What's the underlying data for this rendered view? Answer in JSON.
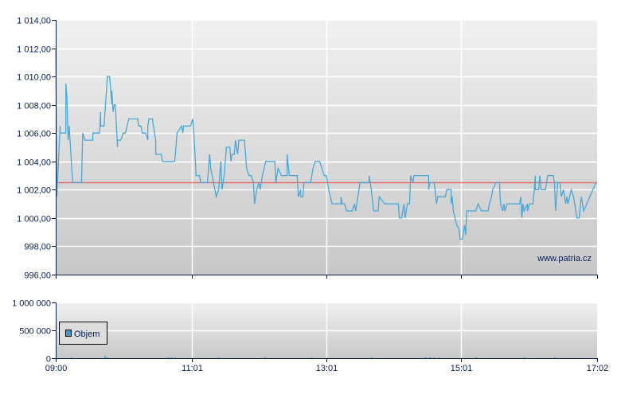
{
  "chart_data": [
    {
      "type": "line",
      "title": "",
      "xlabel": "",
      "ylabel": "",
      "ylim": [
        996,
        1014
      ],
      "xlim": [
        "09:00",
        "17:02"
      ],
      "y_ticks": [
        "1 014,00",
        "1 012,00",
        "1 010,00",
        "1 008,00",
        "1 006,00",
        "1 004,00",
        "1 002,00",
        "1 000,00",
        "998,00",
        "996,00"
      ],
      "y_tick_values": [
        1014,
        1012,
        1010,
        1008,
        1006,
        1004,
        1002,
        1000,
        998,
        996
      ],
      "x_tick_values": [
        "09:00",
        "11:01",
        "13:01",
        "15:01",
        "17:02"
      ],
      "grid": true,
      "watermark": "www.patria.cz",
      "series_color": "#4aa8d8",
      "reference_line": {
        "value": 1002.5,
        "color": "#e06060"
      },
      "series": [
        {
          "points": [
            [
              "09:00",
              1012
            ],
            [
              "09:01",
              1001.5
            ],
            [
              "09:03",
              1005
            ],
            [
              "09:04",
              1006.5
            ],
            [
              "09:04",
              1006
            ],
            [
              "09:09",
              1006
            ],
            [
              "09:09",
              1009.5
            ],
            [
              "09:10",
              1008.5
            ],
            [
              "09:11",
              1005.5
            ],
            [
              "09:12",
              1006.5
            ],
            [
              "09:15",
              1002.5
            ],
            [
              "09:23",
              1002.5
            ],
            [
              "09:24",
              1006
            ],
            [
              "09:26",
              1005.5
            ],
            [
              "09:33",
              1005.5
            ],
            [
              "09:33",
              1006
            ],
            [
              "09:39",
              1006
            ],
            [
              "09:40",
              1007.5
            ],
            [
              "09:40",
              1006.5
            ],
            [
              "09:43",
              1006.5
            ],
            [
              "09:46",
              1010
            ],
            [
              "09:48",
              1010
            ],
            [
              "09:50",
              1008
            ],
            [
              "09:50",
              1009
            ],
            [
              "09:51",
              1007.5
            ],
            [
              "09:52",
              1008
            ],
            [
              "09:53",
              1008
            ],
            [
              "09:54",
              1006.5
            ],
            [
              "09:55",
              1005
            ],
            [
              "09:55",
              1005.5
            ],
            [
              "09:58",
              1005.5
            ],
            [
              "10:00",
              1006
            ],
            [
              "10:02",
              1006
            ],
            [
              "10:05",
              1007
            ],
            [
              "10:13",
              1007
            ],
            [
              "10:14",
              1006.5
            ],
            [
              "10:16",
              1006.5
            ],
            [
              "10:17",
              1006
            ],
            [
              "10:20",
              1006
            ],
            [
              "10:22",
              1005.5
            ],
            [
              "10:22",
              1006.5
            ],
            [
              "10:23",
              1007
            ],
            [
              "10:26",
              1007
            ],
            [
              "10:27",
              1006.5
            ],
            [
              "10:29",
              1005.5
            ],
            [
              "10:29",
              1004.5
            ],
            [
              "10:34",
              1004.5
            ],
            [
              "10:35",
              1004
            ],
            [
              "10:46",
              1004
            ],
            [
              "10:48",
              1006
            ],
            [
              "10:52",
              1006.5
            ],
            [
              "10:53",
              1006
            ],
            [
              "10:54",
              1006.5
            ],
            [
              "11:00",
              1006.5
            ],
            [
              "11:02",
              1007
            ],
            [
              "11:03",
              1006
            ],
            [
              "11:05",
              1003
            ],
            [
              "11:08",
              1003
            ],
            [
              "11:09",
              1002.5
            ],
            [
              "11:15",
              1002.5
            ],
            [
              "11:17",
              1004.5
            ],
            [
              "11:18",
              1003.5
            ],
            [
              "11:23",
              1001.5
            ],
            [
              "11:25",
              1002
            ],
            [
              "11:27",
              1004
            ],
            [
              "11:28",
              1002
            ],
            [
              "11:30",
              1003
            ],
            [
              "11:32",
              1005
            ],
            [
              "11:35",
              1005
            ],
            [
              "11:36",
              1004
            ],
            [
              "11:37",
              1004.5
            ],
            [
              "11:39",
              1004.5
            ],
            [
              "11:40",
              1005.5
            ],
            [
              "11:42",
              1004.5
            ],
            [
              "11:43",
              1005.5
            ],
            [
              "11:48",
              1005.5
            ],
            [
              "11:50",
              1003.5
            ],
            [
              "11:52",
              1003
            ],
            [
              "11:54",
              1003
            ],
            [
              "11:56",
              1002.5
            ],
            [
              "11:57",
              1001
            ],
            [
              "11:59",
              1002
            ],
            [
              "12:01",
              1002.5
            ],
            [
              "12:02",
              1002
            ],
            [
              "12:04",
              1003
            ],
            [
              "12:07",
              1004
            ],
            [
              "12:15",
              1004
            ],
            [
              "12:16",
              1002.5
            ],
            [
              "12:18",
              1003.5
            ],
            [
              "12:21",
              1003
            ],
            [
              "12:26",
              1003
            ],
            [
              "12:26",
              1004.5
            ],
            [
              "12:28",
              1003
            ],
            [
              "12:35",
              1003
            ],
            [
              "12:36",
              1001.5
            ],
            [
              "12:38",
              1002
            ],
            [
              "12:38",
              1001.5
            ],
            [
              "12:40",
              1001.5
            ],
            [
              "12:41",
              1002.5
            ],
            [
              "12:47",
              1002.5
            ],
            [
              "12:49",
              1003.5
            ],
            [
              "12:51",
              1004
            ],
            [
              "12:55",
              1004
            ],
            [
              "12:57",
              1003.5
            ],
            [
              "12:59",
              1003
            ],
            [
              "13:01",
              1003
            ],
            [
              "13:03",
              1002
            ],
            [
              "13:06",
              1001
            ],
            [
              "13:14",
              1001
            ],
            [
              "13:14",
              1001.5
            ],
            [
              "13:15",
              1001
            ],
            [
              "13:17",
              1001
            ],
            [
              "13:19",
              1000.5
            ],
            [
              "13:24",
              1000.5
            ],
            [
              "13:26",
              1001
            ],
            [
              "13:27",
              1000.5
            ],
            [
              "13:31",
              1002.5
            ],
            [
              "13:39",
              1002.5
            ],
            [
              "13:39",
              1003
            ],
            [
              "13:41",
              1002
            ],
            [
              "13:43",
              1000.5
            ],
            [
              "13:47",
              1000.5
            ],
            [
              "13:48",
              1001.5
            ],
            [
              "13:51",
              1001.2
            ],
            [
              "13:53",
              1001
            ],
            [
              "14:05",
              1001
            ],
            [
              "14:06",
              1000
            ],
            [
              "14:08",
              1000
            ],
            [
              "14:10",
              1001
            ],
            [
              "14:11",
              1000
            ],
            [
              "14:13",
              1001
            ],
            [
              "14:15",
              1001
            ],
            [
              "14:16",
              1003
            ],
            [
              "14:18",
              1002.5
            ],
            [
              "14:19",
              1003
            ],
            [
              "14:32",
              1003
            ],
            [
              "14:32",
              1002
            ],
            [
              "14:33",
              1002.5
            ],
            [
              "14:37",
              1002.5
            ],
            [
              "14:39",
              1001
            ],
            [
              "14:40",
              1001.5
            ],
            [
              "14:47",
              1001.5
            ],
            [
              "14:48",
              1002
            ],
            [
              "14:52",
              1002
            ],
            [
              "14:52",
              1001
            ],
            [
              "14:53",
              1001.5
            ],
            [
              "14:54",
              1000.5
            ],
            [
              "14:57",
              999.5
            ],
            [
              "14:59",
              999.2
            ],
            [
              "15:00",
              998.5
            ],
            [
              "15:02",
              998.5
            ],
            [
              "15:04",
              999.5
            ],
            [
              "15:05",
              998.8
            ],
            [
              "15:06",
              1000.5
            ],
            [
              "15:14",
              1000.5
            ],
            [
              "15:16",
              1001
            ],
            [
              "15:19",
              1000.5
            ],
            [
              "15:25",
              1000.5
            ],
            [
              "15:26",
              1001
            ],
            [
              "15:28",
              1001.5
            ],
            [
              "15:29",
              1002
            ],
            [
              "15:32",
              1002.5
            ],
            [
              "15:35",
              1002.5
            ],
            [
              "15:36",
              1001
            ],
            [
              "15:38",
              1000.5
            ],
            [
              "15:39",
              1001
            ],
            [
              "15:40",
              1000.5
            ],
            [
              "15:42",
              1001
            ],
            [
              "15:53",
              1001
            ],
            [
              "15:54",
              1001.5
            ],
            [
              "15:55",
              1000
            ],
            [
              "15:56",
              1001
            ],
            [
              "15:57",
              1000.5
            ],
            [
              "16:00",
              1001
            ],
            [
              "16:00",
              1000.5
            ],
            [
              "16:02",
              1001
            ],
            [
              "16:05",
              1001
            ],
            [
              "16:07",
              1003
            ],
            [
              "16:07",
              1002
            ],
            [
              "16:10",
              1002
            ],
            [
              "16:11",
              1003
            ],
            [
              "16:12",
              1002
            ],
            [
              "16:16",
              1002
            ],
            [
              "16:18",
              1003
            ],
            [
              "16:23",
              1003
            ],
            [
              "16:24",
              1002.5
            ],
            [
              "16:25",
              1000.5
            ],
            [
              "16:27",
              1002.5
            ],
            [
              "16:29",
              1002.5
            ],
            [
              "16:30",
              1001.5
            ],
            [
              "16:32",
              1002
            ],
            [
              "16:34",
              1001
            ],
            [
              "16:35",
              1001.5
            ],
            [
              "16:36",
              1001
            ],
            [
              "16:39",
              1002
            ],
            [
              "16:41",
              1001.5
            ],
            [
              "16:42",
              1001
            ],
            [
              "16:44",
              1000
            ],
            [
              "16:46",
              1000
            ],
            [
              "16:48",
              1001.5
            ],
            [
              "16:50",
              1000.5
            ],
            [
              "17:01",
              1002.5
            ]
          ]
        }
      ]
    },
    {
      "type": "bar",
      "ylim": [
        0,
        1000000
      ],
      "xlim": [
        "09:00",
        "17:02"
      ],
      "y_ticks": [
        "1 000 000",
        "500 000",
        "0"
      ],
      "y_tick_values": [
        1000000,
        500000,
        0
      ],
      "x_ticks": [
        "09:00",
        "11:01",
        "13:01",
        "15:01",
        "17:02"
      ],
      "x_tick_values": [
        "09:00",
        "11:01",
        "13:01",
        "15:01",
        "17:02"
      ],
      "grid": true,
      "legend": {
        "position": "left",
        "entries": [
          "Objem"
        ]
      },
      "series_color": "#3a9ad0",
      "series": [
        {
          "name": "Objem",
          "points": [
            [
              "09:14",
              6000
            ],
            [
              "09:44",
              40000
            ],
            [
              "09:46",
              10000
            ],
            [
              "10:40",
              12000
            ],
            [
              "10:43",
              10000
            ],
            [
              "10:46",
              12000
            ],
            [
              "11:25",
              8000
            ],
            [
              "12:06",
              10000
            ],
            [
              "12:48",
              8000
            ],
            [
              "13:41",
              12000
            ],
            [
              "14:29",
              10000
            ],
            [
              "14:33",
              12000
            ],
            [
              "14:37",
              10000
            ],
            [
              "14:41",
              12000
            ],
            [
              "15:14",
              10000
            ],
            [
              "15:57",
              10000
            ],
            [
              "16:24",
              8000
            ]
          ]
        }
      ]
    }
  ]
}
